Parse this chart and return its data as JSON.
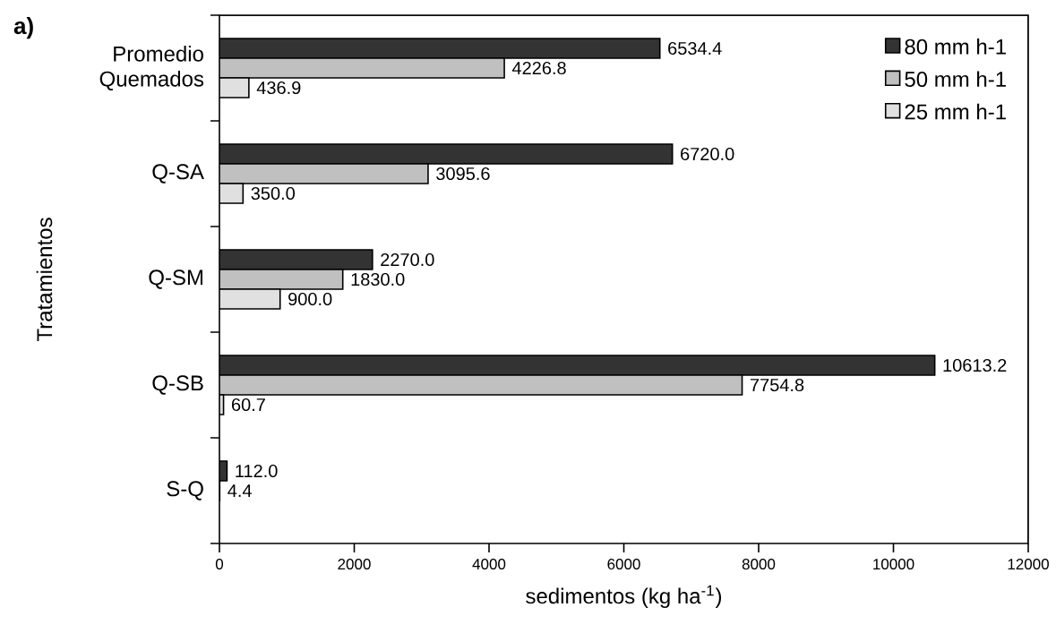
{
  "chart_data": {
    "type": "bar",
    "orientation": "horizontal",
    "xlabel": "sedimentos (kg ha$^{-1}$)",
    "ylabel": "Tratamientos",
    "annotations": [
      "a)"
    ],
    "categories": [
      "Promedio Quemados",
      "Q-SA",
      "Q-SM",
      "Q-SB",
      "S-Q"
    ],
    "series": [
      {
        "name": "80 mm h-1",
        "color": "#333333",
        "values": [
          6534.4,
          6720.0,
          2270.0,
          10613.2,
          112.0
        ],
        "value_labels": [
          "6534.4",
          "6720.0",
          "2270.0",
          "10613.2",
          "112.0"
        ]
      },
      {
        "name": "50 mm h-1",
        "color": "#c0c0c0",
        "values": [
          4226.8,
          3095.6,
          1830.0,
          7754.8,
          4.4
        ],
        "value_labels": [
          "4226.8",
          "3095.6",
          "1830.0",
          "7754.8",
          "4.4"
        ]
      },
      {
        "name": "25 mm h-1",
        "color": "#e0e0e0",
        "values": [
          436.9,
          350.0,
          900.0,
          60.7,
          null
        ],
        "value_labels": [
          "436.9",
          "350.0",
          "900.0",
          "60.7",
          null
        ]
      }
    ],
    "xlim": [
      0,
      12000
    ],
    "xticks": [
      0,
      2000,
      4000,
      6000,
      8000,
      10000,
      12000
    ],
    "legend": "top right"
  }
}
